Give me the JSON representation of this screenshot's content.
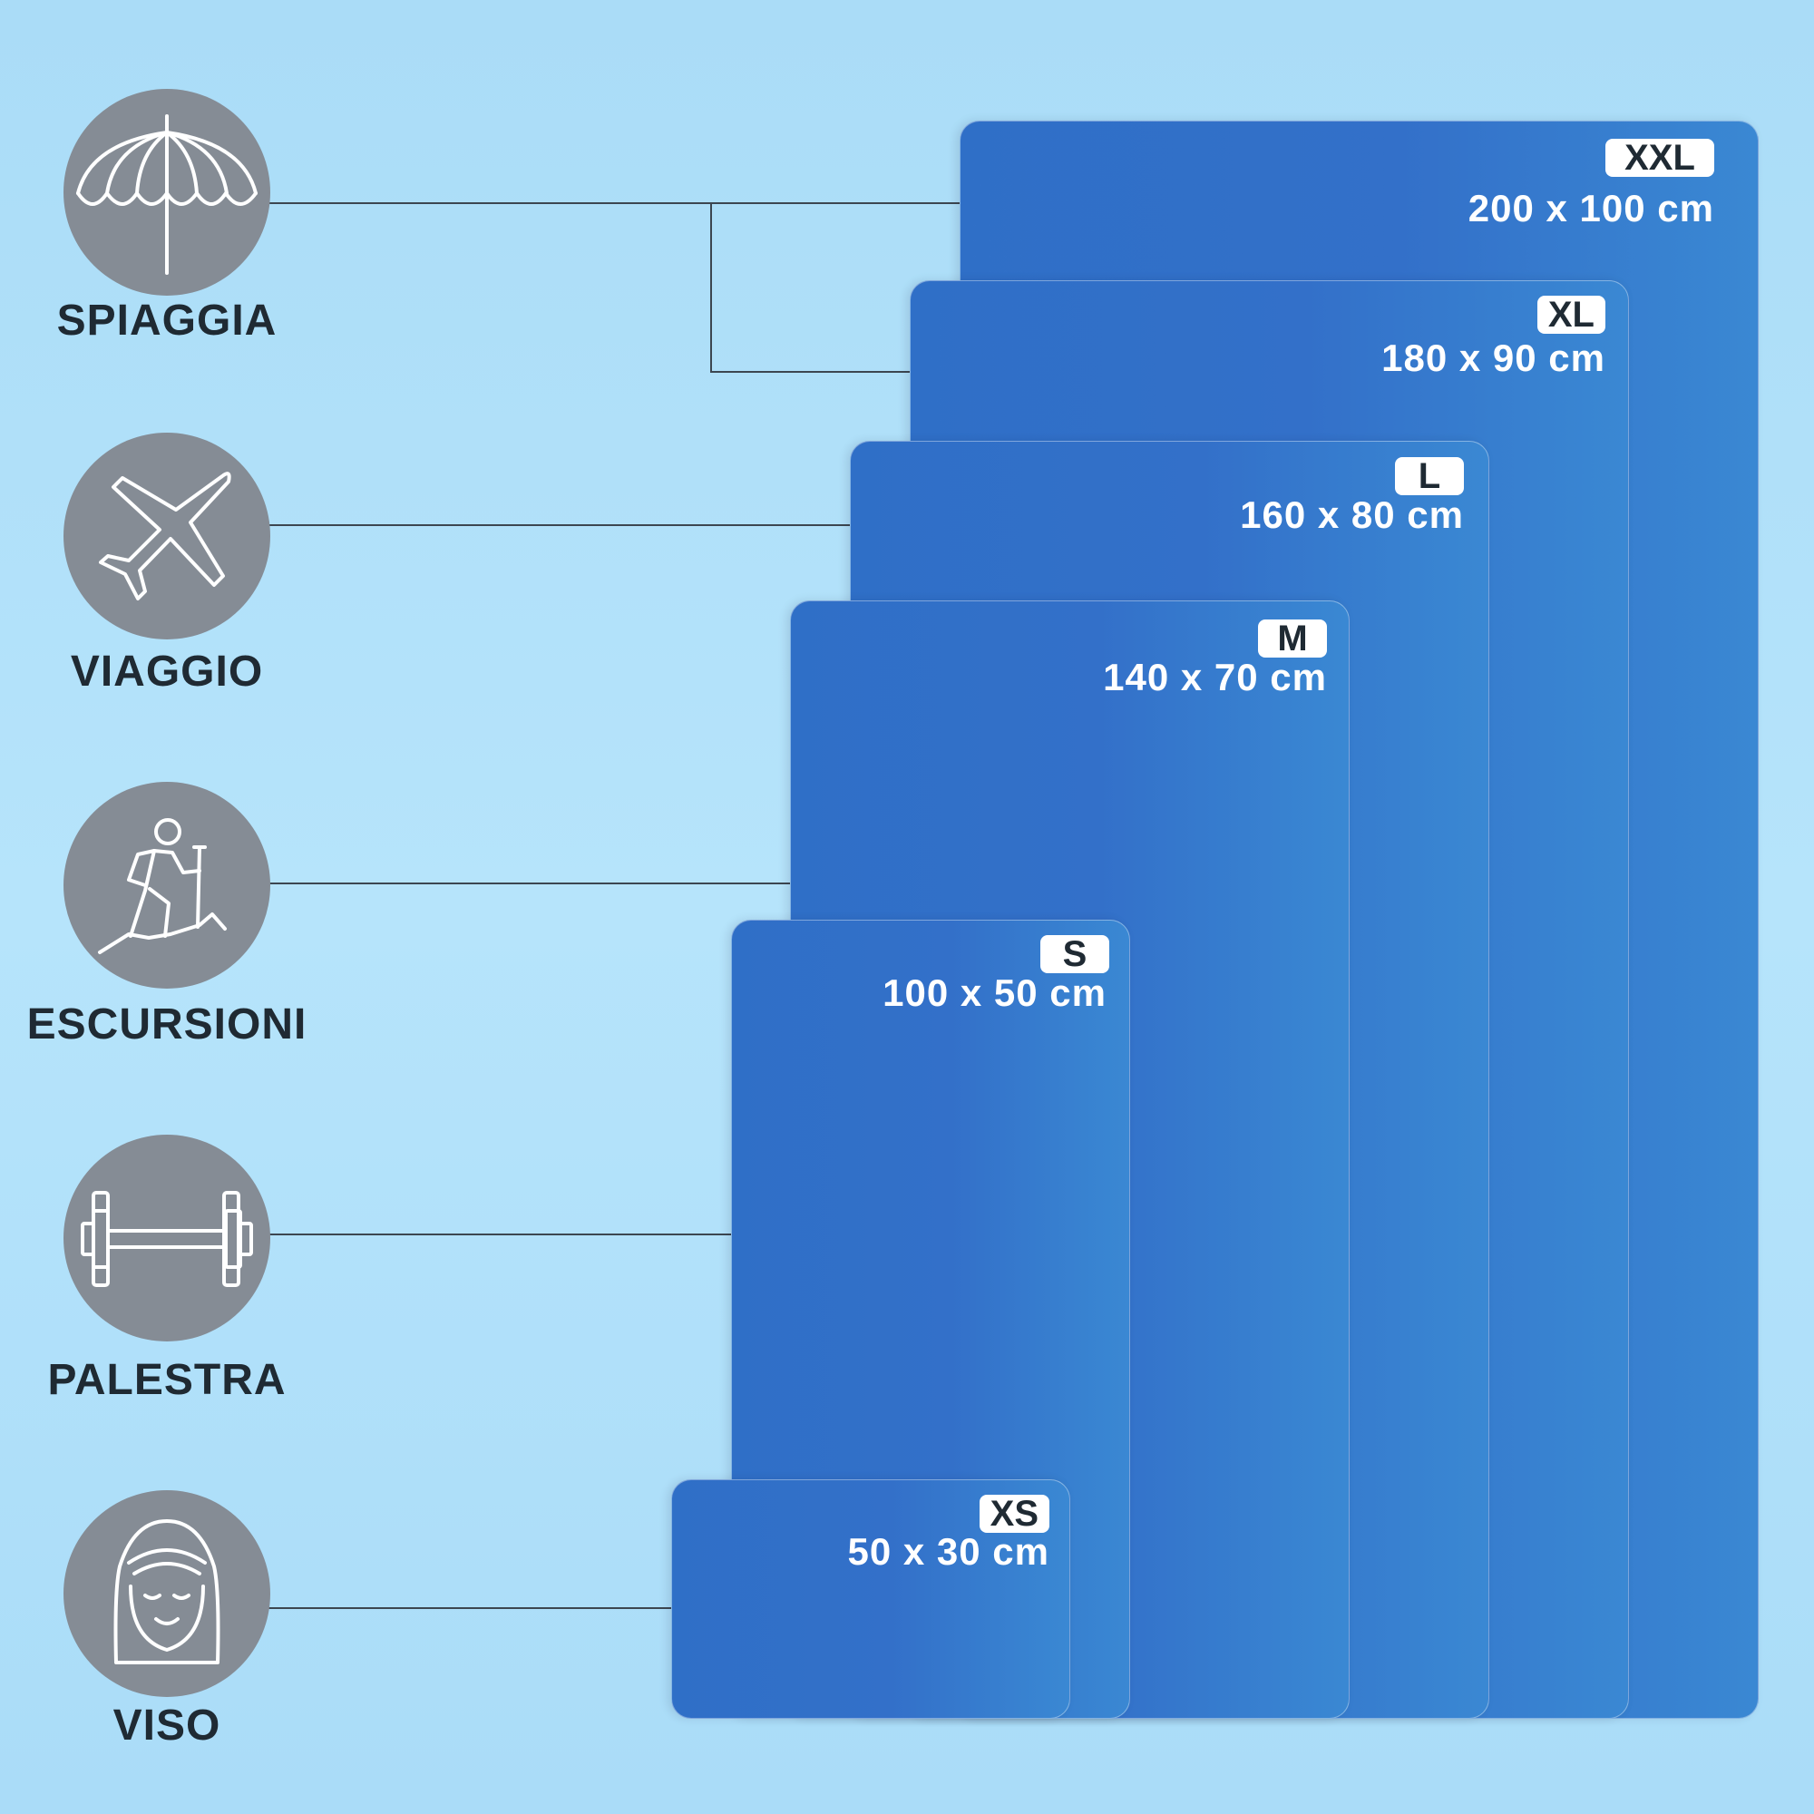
{
  "categories": [
    {
      "label": "SPIAGGIA",
      "icon": "beach-umbrella-icon"
    },
    {
      "label": "VIAGGIO",
      "icon": "airplane-icon"
    },
    {
      "label": "ESCURSIONI",
      "icon": "hiker-icon"
    },
    {
      "label": "PALESTRA",
      "icon": "dumbbell-icon"
    },
    {
      "label": "VISO",
      "icon": "face-icon"
    }
  ],
  "sizes": [
    {
      "size": "XXL",
      "dimensions": "200 x 100 cm"
    },
    {
      "size": "XL",
      "dimensions": "180 x 90 cm"
    },
    {
      "size": "L",
      "dimensions": "160 x 80 cm"
    },
    {
      "size": "M",
      "dimensions": "140 x 70 cm"
    },
    {
      "size": "S",
      "dimensions": "100 x 50 cm"
    },
    {
      "size": "XS",
      "dimensions": "50 x 30 cm"
    }
  ],
  "colors": {
    "background": "#b2e2fa",
    "towel": "#3272c9",
    "icon_circle": "#858c95",
    "text_dark": "#1f2a33"
  }
}
